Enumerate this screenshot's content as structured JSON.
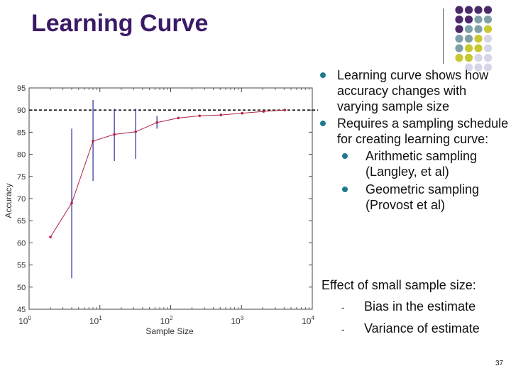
{
  "slide": {
    "title": "Learning Curve",
    "page_number": "37",
    "colors": {
      "title": "#3a1a66",
      "bullet": "#1f7a8c",
      "curve": "#b22244",
      "error_bar": "#2a2aa0",
      "dot_purple": "#4b2a6b",
      "dot_teal": "#7fa0a8",
      "dot_olive": "#c8c832",
      "dot_lavender": "#d6d6e8"
    }
  },
  "bullets": [
    {
      "text": "Learning curve shows how accuracy changes with varying sample size",
      "level": 1
    },
    {
      "text": "Requires a sampling schedule for creating learning curve:",
      "level": 1
    },
    {
      "text": "Arithmetic sampling (Langley, et al)",
      "level": 2
    },
    {
      "text": "Geometric sampling (Provost et al)",
      "level": 2
    }
  ],
  "effect": {
    "heading": "Effect of small sample size:",
    "items": [
      "Bias in the estimate",
      "Variance of estimate"
    ]
  },
  "chart_data": {
    "type": "line",
    "title": "",
    "xlabel": "Sample Size",
    "ylabel": "Accuracy",
    "xscale": "log",
    "xlim": [
      1,
      10000
    ],
    "ylim": [
      45,
      95
    ],
    "y_ticks": [
      45,
      50,
      55,
      60,
      65,
      70,
      75,
      80,
      85,
      90,
      95
    ],
    "x_ticks": [
      {
        "base": "10",
        "exp": "0"
      },
      {
        "base": "10",
        "exp": "1"
      },
      {
        "base": "10",
        "exp": "2"
      },
      {
        "base": "10",
        "exp": "3"
      },
      {
        "base": "10",
        "exp": "4"
      }
    ],
    "grid": false,
    "reference_line": {
      "y": 90,
      "style": "dashed"
    },
    "series": [
      {
        "points": [
          {
            "x": 2,
            "y": 61.3
          },
          {
            "x": 4,
            "y": 69
          },
          {
            "x": 8,
            "y": 83
          },
          {
            "x": 16,
            "y": 84.5
          },
          {
            "x": 32,
            "y": 85.1
          },
          {
            "x": 64,
            "y": 87.2
          },
          {
            "x": 128,
            "y": 88.2
          },
          {
            "x": 256,
            "y": 88.7
          },
          {
            "x": 512,
            "y": 88.9
          },
          {
            "x": 1024,
            "y": 89.3
          },
          {
            "x": 2048,
            "y": 89.7
          },
          {
            "x": 4096,
            "y": 90.0
          }
        ]
      }
    ],
    "error_bars": [
      {
        "x": 4,
        "low": 52,
        "high": 85.8
      },
      {
        "x": 8,
        "low": 74,
        "high": 92.3
      },
      {
        "x": 16,
        "low": 78.5,
        "high": 90.3
      },
      {
        "x": 32,
        "low": 79,
        "high": 90.3
      },
      {
        "x": 64,
        "low": 85.8,
        "high": 88.7
      }
    ]
  }
}
